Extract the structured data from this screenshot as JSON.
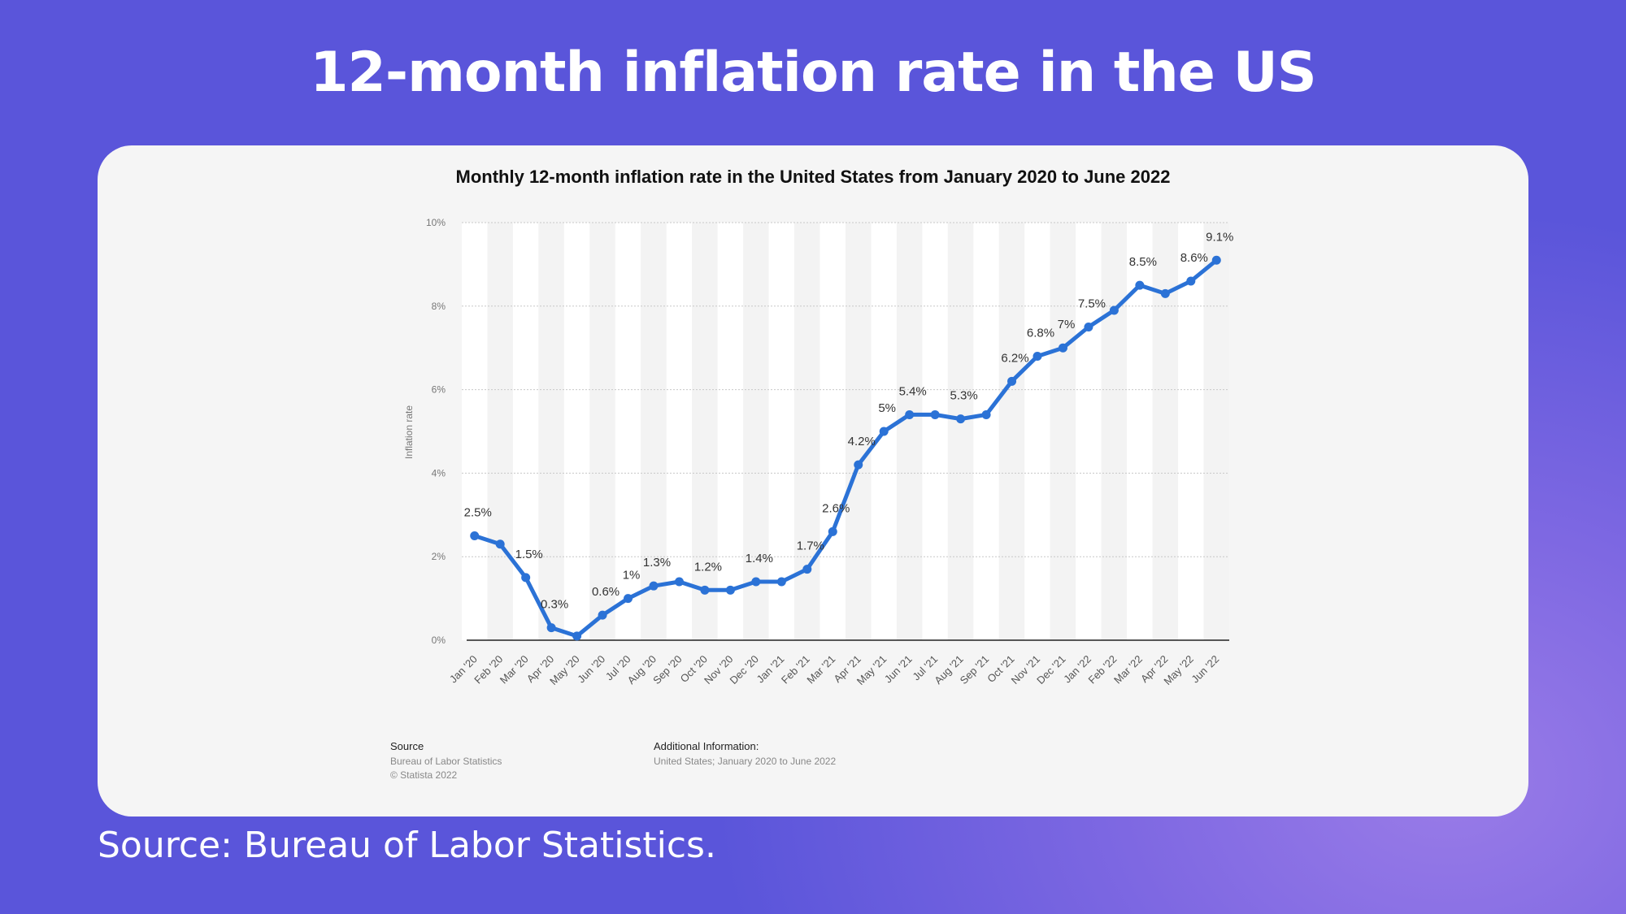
{
  "headline": "12-month inflation rate in the US",
  "footer_source": "Source: Bureau of Labor Statistics.",
  "colors": {
    "background": "#5a55da",
    "line": "#2b72d6",
    "card": "#f5f5f5"
  },
  "chart_data": {
    "type": "line",
    "title": "Monthly 12-month inflation rate in the United States from January 2020 to June 2022",
    "ylabel": "Inflation rate",
    "xlabel": "",
    "ylim": [
      0,
      10
    ],
    "yticks": [
      "0%",
      "2%",
      "4%",
      "6%",
      "8%",
      "10%"
    ],
    "grid": true,
    "categories": [
      "Jan '20",
      "Feb '20",
      "Mar '20",
      "Apr '20",
      "May '20",
      "Jun '20",
      "Jul '20",
      "Aug '20",
      "Sep '20",
      "Oct '20",
      "Nov '20",
      "Dec '20",
      "Jan '21",
      "Feb '21",
      "Mar '21",
      "Apr '21",
      "May '21",
      "Jun '21",
      "Jul '21",
      "Aug '21",
      "Sep '21",
      "Oct '21",
      "Nov '21",
      "Dec '21",
      "Jan '22",
      "Feb '22",
      "Mar '22",
      "Apr '22",
      "May '22",
      "Jun '22"
    ],
    "values": [
      2.5,
      2.3,
      1.5,
      0.3,
      0.1,
      0.6,
      1.0,
      1.3,
      1.4,
      1.2,
      1.2,
      1.4,
      1.4,
      1.7,
      2.6,
      4.2,
      5.0,
      5.4,
      5.4,
      5.3,
      5.4,
      6.2,
      6.8,
      7.0,
      7.5,
      7.9,
      8.5,
      8.3,
      8.6,
      9.1
    ],
    "data_labels": [
      "2.5%",
      "",
      "1.5%",
      "0.3%",
      "",
      "0.6%",
      "1%",
      "1.3%",
      "",
      "1.2%",
      "",
      "1.4%",
      "",
      "1.7%",
      "2.6%",
      "4.2%",
      "5%",
      "5.4%",
      "",
      "5.3%",
      "",
      "6.2%",
      "6.8%",
      "7%",
      "7.5%",
      "",
      "8.5%",
      "",
      "8.6%",
      "9.1%"
    ],
    "source_heading": "Source",
    "source_lines": [
      "Bureau of Labor Statistics",
      "© Statista 2022"
    ],
    "additional_heading": "Additional Information:",
    "additional_text": "United States; January 2020 to June 2022"
  }
}
